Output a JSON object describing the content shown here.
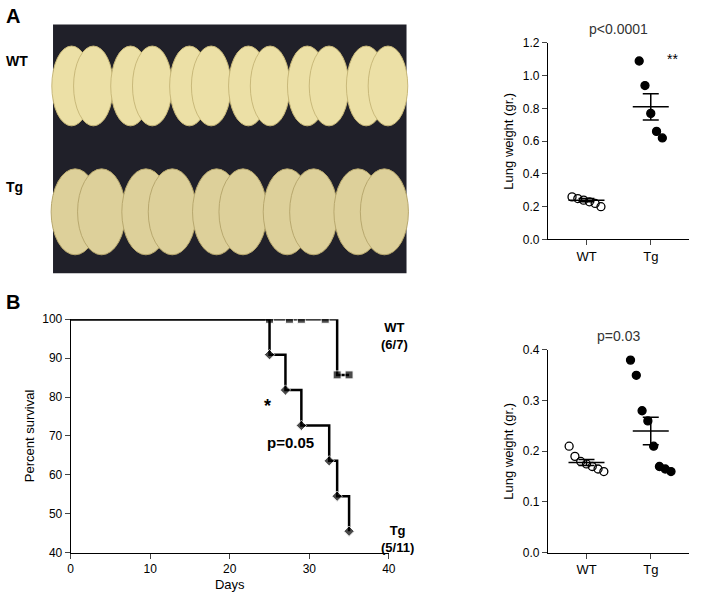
{
  "figure": {
    "panel_labels": [
      "A",
      "B"
    ],
    "photo": {
      "row_labels": [
        "WT",
        "Tg"
      ]
    }
  },
  "chart_data": [
    {
      "type": "scatter",
      "y_label": "Lung weight (gr.)",
      "color": "#000000",
      "categories": [
        "WT",
        "Tg"
      ],
      "values": [
        [
          0.26,
          0.25,
          0.24,
          0.23,
          0.22,
          0.2
        ],
        [
          1.09,
          0.94,
          0.77,
          0.66,
          0.62
        ]
      ],
      "mean": [
        0.24,
        0.81
      ],
      "sem": [
        0.01,
        0.08
      ],
      "marker": [
        "open",
        "filled"
      ],
      "ylim": [
        0,
        1.2
      ],
      "yticks": [
        {
          "value": 0,
          "label": "0.0"
        },
        0.2,
        0.4,
        0.6,
        0.8,
        {
          "value": 1,
          "label": "1.0"
        },
        1.2
      ],
      "annotations": [
        {
          "text": "p<0.0001"
        },
        {
          "text": "**",
          "category": "Tg"
        }
      ]
    },
    {
      "type": "line",
      "line_style": "step",
      "x_label": "Days",
      "y_label": "Percent survival",
      "color": "#000000",
      "xlim": [
        0,
        40
      ],
      "xticks": [
        0,
        10,
        20,
        30,
        40
      ],
      "ylim": [
        40,
        100
      ],
      "yticks": [
        40,
        50,
        60,
        70,
        80,
        90,
        100
      ],
      "series": [
        {
          "name": "WT",
          "note": "(6/7)",
          "marker": "square",
          "x": [
            0,
            25,
            27.5,
            29,
            32,
            33.5,
            35
          ],
          "values": [
            100,
            100,
            100,
            100,
            100,
            85.7,
            85.7
          ]
        },
        {
          "name": "Tg",
          "note": "(5/11)",
          "marker": "diamond",
          "x": [
            0,
            25,
            27,
            29,
            32.5,
            33.5,
            35
          ],
          "values": [
            100,
            90.9,
            81.8,
            72.7,
            63.6,
            54.5,
            45.5
          ]
        }
      ],
      "annotations": [
        {
          "text": "*"
        },
        {
          "text": "p=0.05"
        }
      ]
    },
    {
      "type": "scatter",
      "y_label": "Lung weight (gr.)",
      "color": "#000000",
      "categories": [
        "WT",
        "Tg"
      ],
      "values": [
        [
          0.21,
          0.19,
          0.18,
          0.175,
          0.17,
          0.165,
          0.16
        ],
        [
          0.38,
          0.35,
          0.28,
          0.26,
          0.21,
          0.17,
          0.165,
          0.16
        ]
      ],
      "mean": [
        0.178,
        0.24
      ],
      "sem": [
        0.006,
        0.027
      ],
      "marker": [
        "open",
        "filled"
      ],
      "ylim": [
        0,
        0.4
      ],
      "yticks": [
        {
          "value": 0,
          "label": "0.0"
        },
        0.1,
        0.2,
        0.3,
        0.4
      ],
      "annotations": [
        {
          "text": "p=0.03"
        }
      ]
    }
  ]
}
